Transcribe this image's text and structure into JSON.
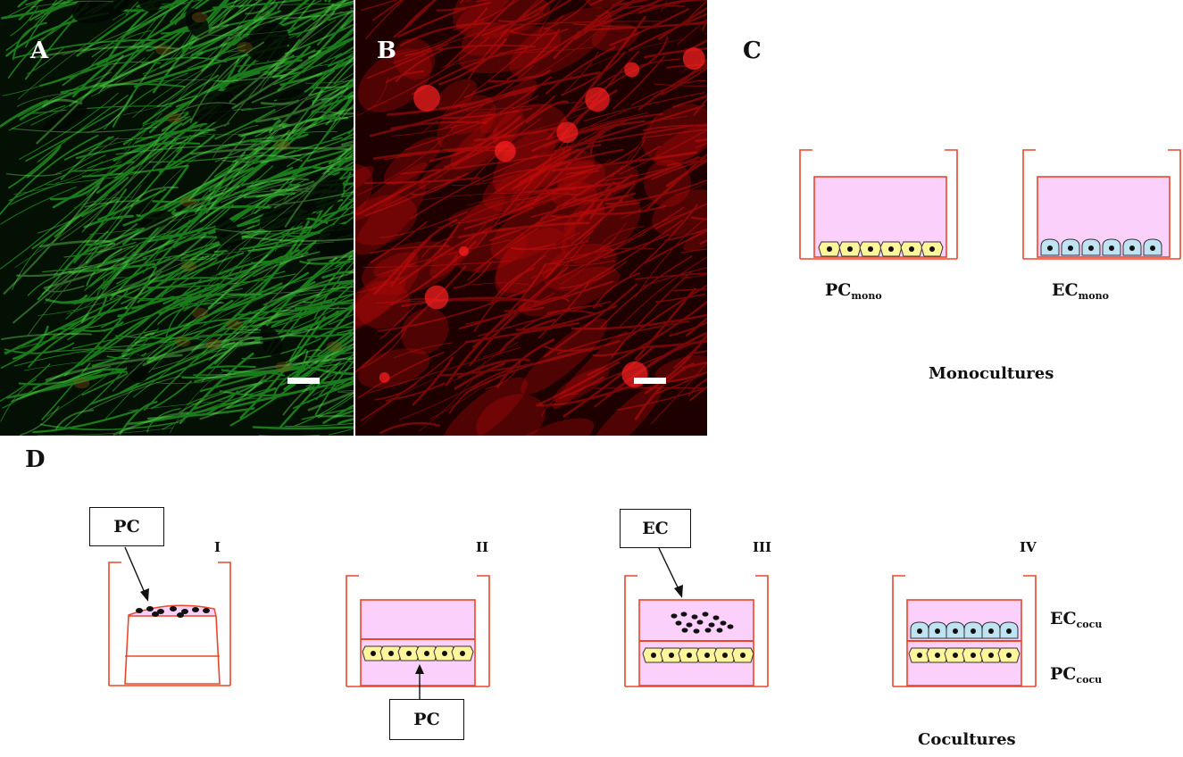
{
  "panels": {
    "a": {
      "letter": "A",
      "color": "#2fd12f"
    },
    "b": {
      "letter": "B",
      "color": "#e01010"
    },
    "c": {
      "letter": "C"
    },
    "d": {
      "letter": "D"
    }
  },
  "monocultures": {
    "pc_label": "PC",
    "pc_sub": "mono",
    "ec_label": "EC",
    "ec_sub": "mono",
    "caption": "Monocultures"
  },
  "cocultures": {
    "steps": [
      "I",
      "II",
      "III",
      "IV"
    ],
    "pc_box": "PC",
    "pc_box_bottom": "PC",
    "ec_box": "EC",
    "ec_label": "EC",
    "ec_sub": "cocu",
    "pc_label": "PC",
    "pc_sub": "cocu",
    "caption": "Cocultures"
  },
  "colors": {
    "well_line": "#e8482a",
    "medium": "#fbd0fb",
    "pericyte": "#fff59a",
    "endothelial": "#bfe3f2",
    "nucleus": "#111111"
  }
}
